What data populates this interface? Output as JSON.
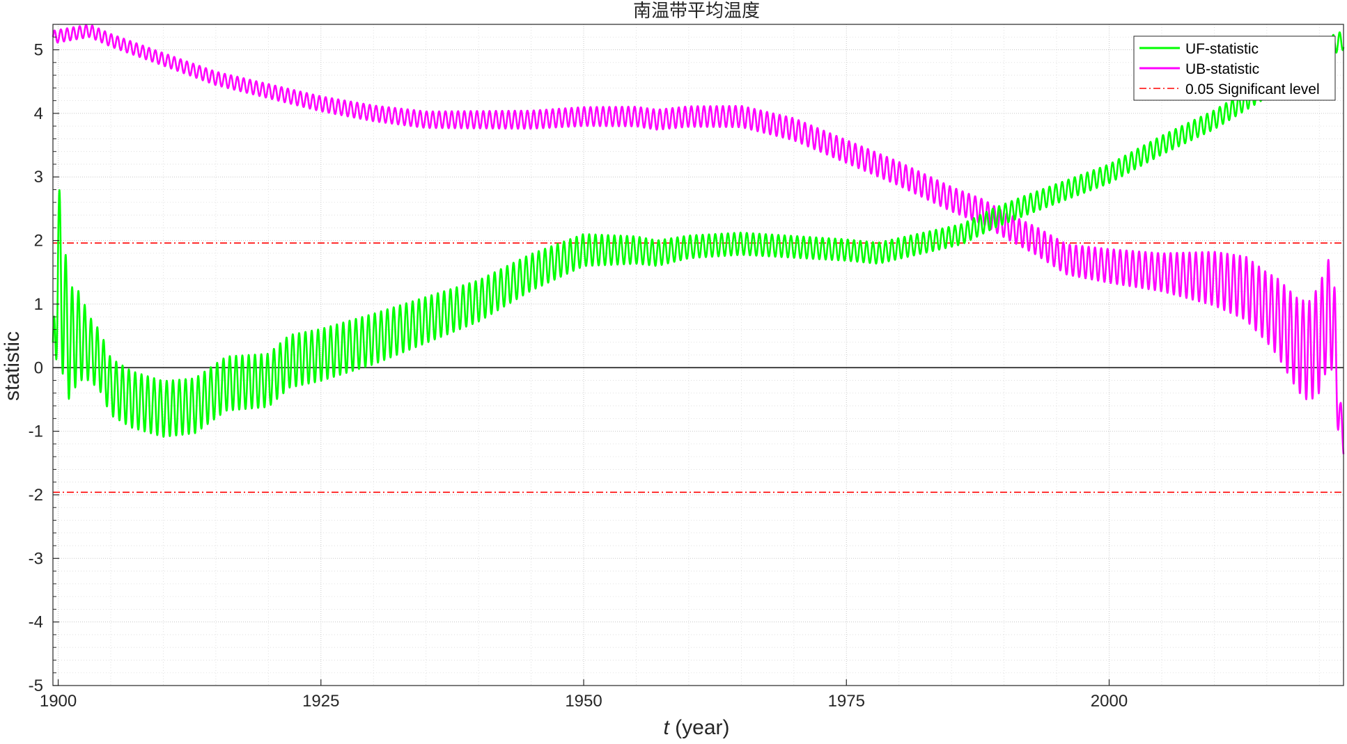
{
  "chart_data": {
    "type": "line",
    "title": "南温带平均温度",
    "xlabel_italic": "t",
    "xlabel_rest": " (year)",
    "ylabel": "statistic",
    "xlim": [
      1899.5,
      2022.3
    ],
    "ylim": [
      -5,
      5.4
    ],
    "xticks": [
      1900,
      1925,
      1950,
      1975,
      2000
    ],
    "xtick_labels": [
      "1900",
      "1925",
      "1950",
      "1975",
      "2000"
    ],
    "yticks": [
      -5,
      -4,
      -3,
      -2,
      -1,
      0,
      1,
      2,
      3,
      4,
      5
    ],
    "ytick_labels": [
      "-5",
      "-4",
      "-3",
      "-2",
      "-1",
      "0",
      "1",
      "2",
      "3",
      "4",
      "5"
    ],
    "grid": true,
    "minor_grid": true,
    "legend_position": "top-right",
    "zero_line": 0,
    "significance_level": 1.96,
    "series": [
      {
        "name": "UF-statistic",
        "color": "#00ff00",
        "style": "solid",
        "oscillation_period_years": 0.6,
        "amplitude": [
          [
            1899.5,
            0.2
          ],
          [
            1900,
            1.4
          ],
          [
            1901,
            0.9
          ],
          [
            1903,
            0.5
          ],
          [
            1905,
            0.45
          ],
          [
            1930,
            0.4
          ],
          [
            1960,
            0.18
          ],
          [
            2000,
            0.15
          ],
          [
            2020,
            0.15
          ],
          [
            2022.3,
            0.15
          ]
        ],
        "trend": [
          [
            1899.5,
            0.2
          ],
          [
            1900,
            1.6
          ],
          [
            1901,
            0.4
          ],
          [
            1902,
            0.5
          ],
          [
            1903,
            0.3
          ],
          [
            1904,
            0.1
          ],
          [
            1905,
            -0.3
          ],
          [
            1907,
            -0.5
          ],
          [
            1910,
            -0.65
          ],
          [
            1913,
            -0.6
          ],
          [
            1916,
            -0.25
          ],
          [
            1920,
            -0.2
          ],
          [
            1922,
            0.1
          ],
          [
            1925,
            0.2
          ],
          [
            1930,
            0.45
          ],
          [
            1935,
            0.75
          ],
          [
            1940,
            1.05
          ],
          [
            1945,
            1.5
          ],
          [
            1950,
            1.85
          ],
          [
            1955,
            1.85
          ],
          [
            1957,
            1.8
          ],
          [
            1960,
            1.9
          ],
          [
            1965,
            1.95
          ],
          [
            1970,
            1.9
          ],
          [
            1975,
            1.85
          ],
          [
            1978,
            1.8
          ],
          [
            1982,
            1.95
          ],
          [
            1986,
            2.1
          ],
          [
            1989,
            2.35
          ],
          [
            1992,
            2.55
          ],
          [
            1996,
            2.8
          ],
          [
            2000,
            3.05
          ],
          [
            2005,
            3.5
          ],
          [
            2010,
            3.9
          ],
          [
            2014,
            4.3
          ],
          [
            2017,
            4.6
          ],
          [
            2020,
            5.0
          ],
          [
            2022.3,
            5.15
          ]
        ]
      },
      {
        "name": "UB-statistic",
        "color": "#ff00ff",
        "style": "solid",
        "oscillation_period_years": 0.6,
        "amplitude": [
          [
            1899.5,
            0.1
          ],
          [
            1910,
            0.1
          ],
          [
            1950,
            0.15
          ],
          [
            1990,
            0.2
          ],
          [
            2005,
            0.3
          ],
          [
            2015,
            0.55
          ],
          [
            2020,
            0.85
          ],
          [
            2021.5,
            0.8
          ],
          [
            2022.3,
            0.3
          ]
        ],
        "trend": [
          [
            1899.5,
            5.2
          ],
          [
            1903,
            5.3
          ],
          [
            1905,
            5.15
          ],
          [
            1910,
            4.85
          ],
          [
            1915,
            4.55
          ],
          [
            1920,
            4.35
          ],
          [
            1925,
            4.15
          ],
          [
            1930,
            4.0
          ],
          [
            1935,
            3.9
          ],
          [
            1940,
            3.9
          ],
          [
            1945,
            3.9
          ],
          [
            1950,
            3.95
          ],
          [
            1955,
            3.95
          ],
          [
            1957,
            3.9
          ],
          [
            1960,
            3.95
          ],
          [
            1965,
            3.95
          ],
          [
            1970,
            3.75
          ],
          [
            1975,
            3.4
          ],
          [
            1980,
            3.05
          ],
          [
            1985,
            2.65
          ],
          [
            1988,
            2.45
          ],
          [
            1990,
            2.25
          ],
          [
            1993,
            2.0
          ],
          [
            1996,
            1.7
          ],
          [
            2000,
            1.6
          ],
          [
            2005,
            1.5
          ],
          [
            2010,
            1.4
          ],
          [
            2013,
            1.25
          ],
          [
            2016,
            0.8
          ],
          [
            2018,
            0.35
          ],
          [
            2019,
            0.25
          ],
          [
            2020,
            0.45
          ],
          [
            2021,
            0.95
          ],
          [
            2021.5,
            0.4
          ],
          [
            2022,
            -1.0
          ],
          [
            2022.3,
            -1.1
          ]
        ]
      },
      {
        "name": "0.05 Significant level",
        "color": "#ff0000",
        "style": "dash-dot",
        "values": [
          1.96,
          -1.96
        ]
      }
    ]
  }
}
